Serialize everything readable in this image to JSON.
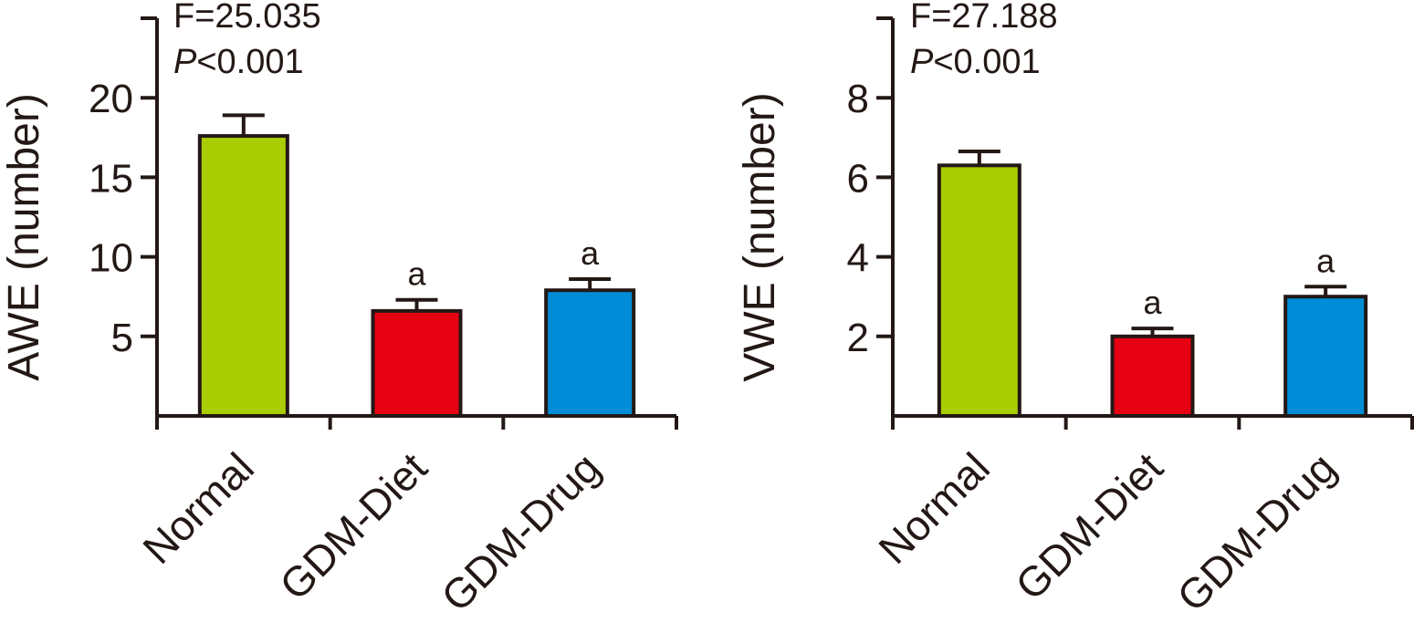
{
  "chart_data": [
    {
      "type": "bar",
      "title": "",
      "xlabel": "",
      "ylabel": "AWE (number)",
      "ylim": [
        0,
        25
      ],
      "yticks": [
        5,
        10,
        15,
        20
      ],
      "grid": false,
      "categories": [
        "Normal",
        "GDM-Diet",
        "GDM-Drug"
      ],
      "values": [
        17.6,
        6.6,
        7.9
      ],
      "error_upper": [
        18.9,
        7.3,
        8.6
      ],
      "significance": [
        "",
        "a",
        "a"
      ],
      "colors": [
        "#aacc03",
        "#e50012",
        "#008cd6"
      ],
      "annotation": {
        "f_stat": "F=25.035",
        "p_symbol": "P",
        "p_value": "<0.001"
      }
    },
    {
      "type": "bar",
      "title": "",
      "xlabel": "",
      "ylabel": "VWE (number)",
      "ylim": [
        0,
        10
      ],
      "yticks": [
        2,
        4,
        6,
        8
      ],
      "grid": false,
      "categories": [
        "Normal",
        "GDM-Diet",
        "GDM-Drug"
      ],
      "values": [
        6.3,
        2.0,
        3.0
      ],
      "error_upper": [
        6.65,
        2.2,
        3.25
      ],
      "significance": [
        "",
        "a",
        "a"
      ],
      "colors": [
        "#aacc03",
        "#e50012",
        "#008cd6"
      ],
      "annotation": {
        "f_stat": "F=27.188",
        "p_symbol": "P",
        "p_value": "<0.001"
      }
    }
  ]
}
